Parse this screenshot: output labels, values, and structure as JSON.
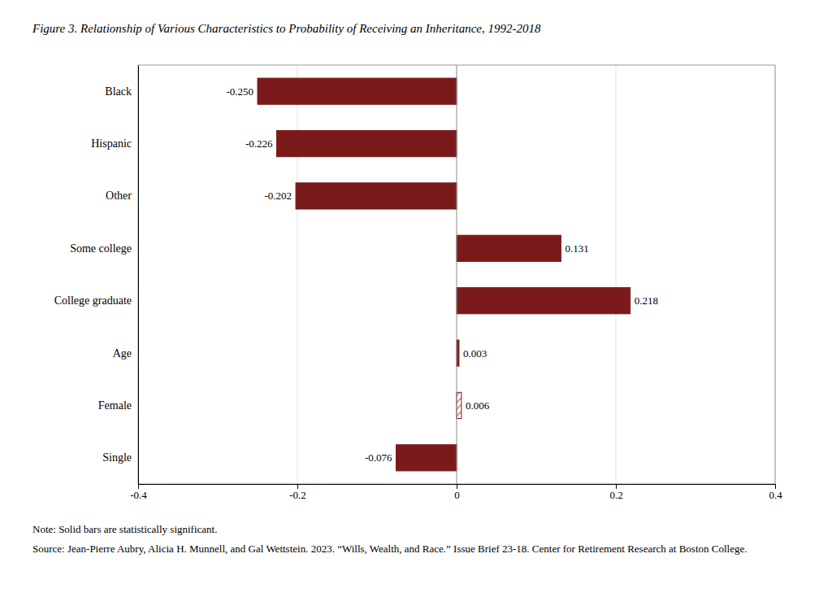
{
  "chart_data": {
    "type": "bar",
    "orientation": "horizontal",
    "title": "Figure 3. Relationship of Various Characteristics to Probability of Receiving an Inheritance, 1992-2018",
    "categories": [
      "Black",
      "Hispanic",
      "Other",
      "Some college",
      "College graduate",
      "Age",
      "Female",
      "Single"
    ],
    "values": [
      -0.25,
      -0.226,
      -0.202,
      0.131,
      0.218,
      0.003,
      0.006,
      -0.076
    ],
    "value_labels": [
      "-0.250",
      "-0.226",
      "-0.202",
      "0.131",
      "0.218",
      "0.003",
      "0.006",
      "-0.076"
    ],
    "significant": [
      true,
      true,
      true,
      true,
      true,
      true,
      false,
      true
    ],
    "color": "#7B1A1A",
    "xlim": [
      -0.4,
      0.4
    ],
    "xticks": [
      -0.4,
      -0.2,
      0,
      0.2,
      0.4
    ],
    "grid": true,
    "data_labels": true,
    "annotations": [
      "Note: Solid bars are statistically significant.",
      "Source: Jean-Pierre Aubry, Alicia H. Munnell, and Gal Wettstein. 2023. “Wills, Wealth, and Race.” Issue Brief 23-18. Center for Retirement Research at Boston College."
    ]
  }
}
